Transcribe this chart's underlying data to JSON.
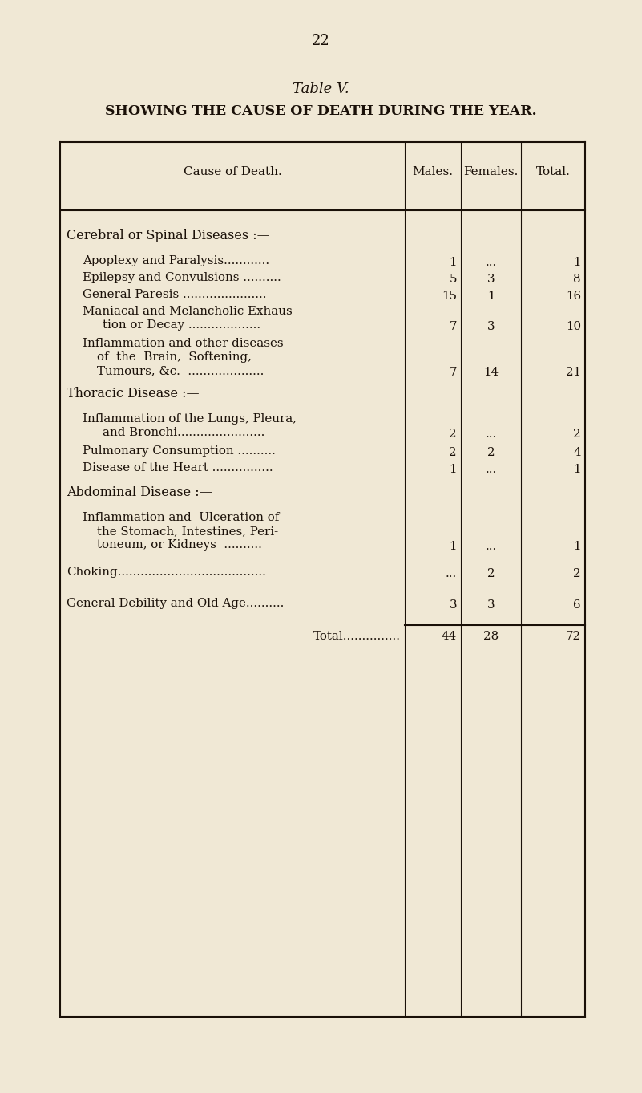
{
  "page_number": "22",
  "title": "Table V.",
  "subtitle": "SHOWING THE CAUSE OF DEATH DURING THE YEAR.",
  "bg_color": "#f0e8d5",
  "text_color": "#1a1008",
  "col_headers": [
    "Cause of Death.",
    "Males.",
    "Females.",
    "Total."
  ],
  "sections": [
    {
      "heading": "Cerebral or Spinal Diseases :—",
      "heading_indent": 0,
      "rows": [
        {
          "cause": "Apoplexy and Paralysis............",
          "indent": 1,
          "males": "1",
          "females": "...",
          "total": "1"
        },
        {
          "cause": "Epilepsy and Convulsions ..........",
          "indent": 1,
          "males": "5",
          "females": "3",
          "total": "8"
        },
        {
          "cause": "General Paresis ......................",
          "indent": 1,
          "males": "15",
          "females": "1",
          "total": "16"
        },
        {
          "cause": "Maniacal and Melancholic Exhaus-\n    tion or Decay ...................",
          "indent": 1,
          "males": "7",
          "females": "3",
          "total": "10"
        },
        {
          "cause": "Inflammation and other diseases\n    of  the  Brain,  Softening,\n    Tumours, &c.  ...................",
          "indent": 1,
          "males": "7",
          "females": "14",
          "total": "21"
        }
      ]
    },
    {
      "heading": "Thoracic Disease :—",
      "heading_indent": 0,
      "rows": [
        {
          "cause": "Inflammation of the Lungs, Pleura,\n    and Bronchi.......................",
          "indent": 1,
          "males": "2",
          "females": "...",
          "total": "2"
        },
        {
          "cause": "Pulmonary Consumption ..........",
          "indent": 1,
          "males": "2",
          "females": "2",
          "total": "4"
        },
        {
          "cause": "Disease of the Heart ................",
          "indent": 1,
          "males": "1",
          "females": "...",
          "total": "1"
        }
      ]
    },
    {
      "heading": "Abdominal Disease :—",
      "heading_indent": 0,
      "rows": [
        {
          "cause": "Inflammation and Ulceration of\n    the Stomach, Intestines, Peri-\n    toneum, or Kidneys  ..........",
          "indent": 1,
          "males": "1",
          "females": "...",
          "total": "1"
        }
      ]
    }
  ],
  "standalone_rows": [
    {
      "cause": "Choking.......................................",
      "indent": 0,
      "males": "...",
      "females": "2",
      "total": "2"
    },
    {
      "cause": "General Debility and Old Age..........",
      "indent": 0,
      "males": "3",
      "females": "3",
      "total": "6"
    }
  ],
  "total_row": {
    "cause": "Total...............",
    "males": "44",
    "females": "28",
    "total": "72"
  },
  "figsize": [
    8.01,
    13.62
  ],
  "dpi": 100
}
